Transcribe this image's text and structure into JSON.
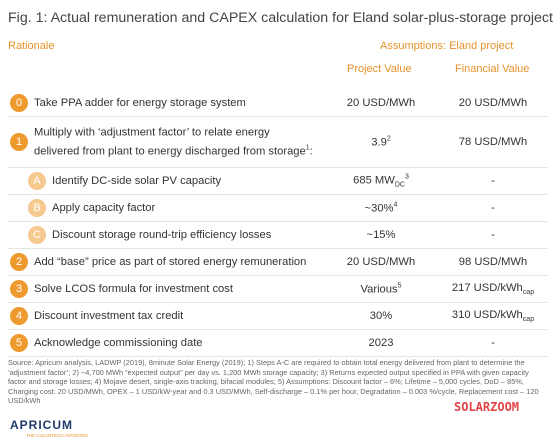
{
  "title": "Fig. 1: Actual remuneration and CAPEX calculation for Eland solar-plus-storage project",
  "header": {
    "rationale": "Rationale",
    "assumptions": "Assumptions: Eland project",
    "project_value": "Project Value",
    "financial_value": "Financial Value"
  },
  "rows": [
    {
      "badge": "0",
      "level": "main",
      "label": {
        "lines": [
          "Take PPA adder for energy storage system"
        ]
      },
      "project": {
        "text": "20 USD/MWh"
      },
      "financial": {
        "text": "20 USD/MWh"
      }
    },
    {
      "badge": "1",
      "level": "main",
      "label": {
        "lines": [
          "Multiply with ‘adjustment factor’ to relate energy",
          "delivered from plant to energy discharged from storage"
        ],
        "sup": "1",
        "suffix": ":"
      },
      "project": {
        "text": "3.9",
        "sup": "2"
      },
      "financial": {
        "text": "78 USD/MWh"
      }
    },
    {
      "badge": "A",
      "level": "sub",
      "label": {
        "lines": [
          "Identify DC-side solar PV capacity"
        ]
      },
      "project": {
        "text": "685 MW",
        "sub": "DC",
        "sup": "3"
      },
      "financial": {
        "text": "-"
      }
    },
    {
      "badge": "B",
      "level": "sub",
      "label": {
        "lines": [
          "Apply capacity factor"
        ]
      },
      "project": {
        "text": "~30%",
        "sup": "4"
      },
      "financial": {
        "text": "-"
      }
    },
    {
      "badge": "C",
      "level": "sub",
      "label": {
        "lines": [
          "Discount storage round-trip efficiency losses"
        ]
      },
      "project": {
        "text": "~15%"
      },
      "financial": {
        "text": "-"
      }
    },
    {
      "badge": "2",
      "level": "main",
      "label": {
        "lines": [
          "Add “base” price as part of stored energy remuneration"
        ]
      },
      "project": {
        "text": "20 USD/MWh"
      },
      "financial": {
        "text": "98 USD/MWh"
      }
    },
    {
      "badge": "3",
      "level": "main",
      "label": {
        "lines": [
          "Solve LCOS formula for investment cost"
        ]
      },
      "project": {
        "text": "Various",
        "sup": "5"
      },
      "financial": {
        "text": "217 USD/kWh",
        "sub": "cap"
      }
    },
    {
      "badge": "4",
      "level": "main",
      "label": {
        "lines": [
          "Discount investment tax credit"
        ]
      },
      "project": {
        "text": "30%"
      },
      "financial": {
        "text": "310 USD/kWh",
        "sub": "cap"
      }
    },
    {
      "badge": "5",
      "level": "main",
      "label": {
        "lines": [
          "Acknowledge commissioning date"
        ]
      },
      "project": {
        "text": "2023"
      },
      "financial": {
        "text": "-"
      }
    }
  ],
  "footnote": "Source: Apricum analysis, LADWP (2019), 8minute Solar Energy (2019); 1) Steps A-C are required to obtain total energy delivered from plant to determine the ‘adjustment factor’; 2) ~4,700 MWh “expected output” per day vs. 1,200 MWh storage capacity; 3) Returns expected output specified in PPA with given capacity factor and storage losses; 4) Mojave desert, single-axis tracking, bifacial modules; 5) Assumptions: Discount factor – 6%; Lifetime – 5,000 cycles, DoD – 85%, Charging cost: 20 USD/MWh, OPEX – 1 USD/kW-year and 0.3 USD/MWh, Self-discharge – 0.1% per hour, Degradation – 0.003 %/cycle, Replacement cost – 120 USD/kWh",
  "logo": {
    "name": "APRICUM",
    "tagline": "THE CLEANTECH ADVISORS"
  },
  "watermark": "SOLARZOOM"
}
